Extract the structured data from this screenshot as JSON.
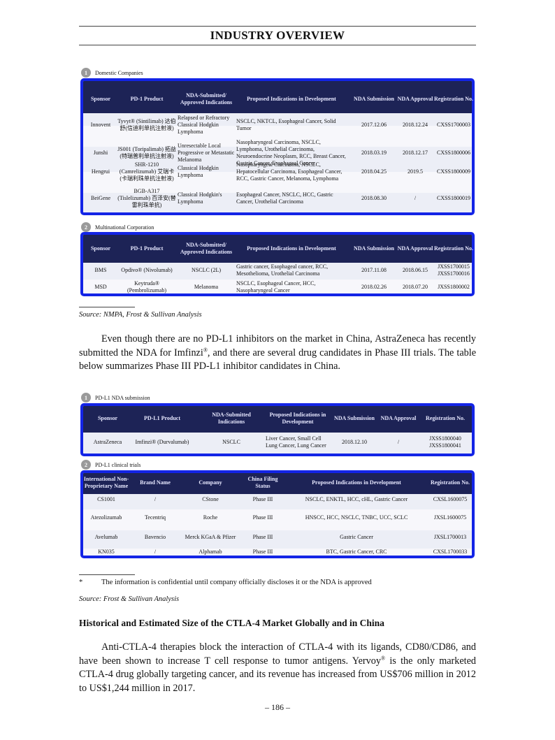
{
  "header": {
    "title": "INDUSTRY OVERVIEW"
  },
  "pd1": {
    "sections": [
      {
        "num": "1",
        "label": "Domestic Companies",
        "columns": [
          "Sponsor",
          "PD-1 Product",
          "NDA-Submitted/ Approved Indications",
          "Proposed Indications in Development",
          "NDA Submission",
          "NDA Approval",
          "Registration No."
        ],
        "rows": [
          [
            "Innovent",
            "Tyvyt® (Sintilimab) 达伯舒(信迪利单抗注射液)",
            "Relapsed or Refractory Classical Hodgkin Lymphoma",
            "NSCLC, NKTCL, Esophageal Cancer, Solid Tumor",
            "2017.12.06",
            "2018.12.24",
            "CXSS1700003"
          ],
          [
            "Junshi",
            "JS001 (Toripalimab) 拓益(特瑞普利单抗注射液)",
            "Unresectable Local Progressive or Metastatic Melanoma",
            "Nasopharyngeal Carcinoma, NSCLC, Lymphoma, Urothelial Carcinoma, Neuroendocrine Neoplasm, RCC, Breast Cancer, Gastric Cancer, Esophageal Cancer",
            "2018.03.19",
            "2018.12.17",
            "CXSS1800006"
          ],
          [
            "Hengrui",
            "SHR-1210 (Camrelizumab) 艾瑞卡(卡瑞利珠单抗注射液)",
            "Classical Hodgkin Lymphoma",
            "Nasopharyngeal Carcinoma, NSCLC, Hepatocellular Carcinoma, Esophageal Cancer, RCC, Gastric Cancer, Melanoma, Lymphoma",
            "2018.04.25",
            "2019.5",
            "CXSS1800009"
          ],
          [
            "BeiGene",
            "BGB-A317 (Tislelizumab) 百泽安(替雷利珠单抗)",
            "Classical Hodgkin's Lymphoma",
            "Esophageal Cancer, NSCLC, HCC, Gastric Cancer, Urothelial Carcinoma",
            "2018.08.30",
            "/",
            "CXSS1800019"
          ]
        ]
      },
      {
        "num": "2",
        "label": "Multinational Corporation",
        "columns": [
          "Sponsor",
          "PD-1 Product",
          "NDA-Submitted/ Approved Indications",
          "Proposed Indications in Development",
          "NDA Submission",
          "NDA Approval",
          "Registration No."
        ],
        "rows": [
          [
            "BMS",
            "Opdivo® (Nivolumab)",
            "NSCLC (2L)",
            "Gastric cancer, Esophageal cancer, RCC, Mesothelioma, Urothelial Carcinoma",
            "2017.11.08",
            "2018.06.15",
            "JXSS1700015 JXSS1700016"
          ],
          [
            "MSD",
            "Keytruda® (Pembrolizumab)",
            "Melanoma",
            "NSCLC, Esophageal Cancer, HCC, Nasopharyngeal Cancer",
            "2018.02.26",
            "2018.07.20",
            "JXSS1800002"
          ]
        ]
      }
    ],
    "source": "Source: NMPA, Frost & Sullivan Analysis"
  },
  "para1": {
    "pre": "Even though there are no PD-L1 inhibitors on the market in China, AstraZeneca has recently submitted the NDA for Imfinzi",
    "sup": "®",
    "post": ", and there are several drug candidates in Phase III trials. The table below summarizes Phase III PD-L1 inhibitor candidates in China."
  },
  "pdl1": {
    "sec1": {
      "num": "1",
      "label": "PD-L1 NDA submission",
      "columns": [
        "Sponsor",
        "PD-L1 Product",
        "NDA-Submitted Indications",
        "Proposed Indications in Development",
        "NDA Submission",
        "NDA Approval",
        "Registration No."
      ],
      "rows": [
        [
          "AstraZeneca",
          "Imfinzi® (Durvalumab)",
          "NSCLC",
          "Liver Cancer, Small Cell Lung Cancer, Lung Cancer",
          "2018.12.10",
          "/",
          "JXSS1800040 JXSS1800041"
        ]
      ]
    },
    "sec2": {
      "num": "2",
      "label": "PD-L1 clinical trials",
      "columns": [
        "International Non-Proprietary Name",
        "Brand Name",
        "Company",
        "China Filing Status",
        "Proposed Indications in Development",
        "Registration No."
      ],
      "rows": [
        [
          "CS1001",
          "/",
          "CStone",
          "Phase III",
          "NSCLC, ENKTL, HCC, cHL, Gastric Cancer",
          "CXSL1600075"
        ],
        [
          "Atezolizumab",
          "Tecentriq",
          "Roche",
          "Phase III",
          "HNSCC, HCC, NSCLC, TNBC, UCC, SCLC",
          "JXSL1600075"
        ],
        [
          "Avelumab",
          "Bavencio",
          "Merck KGaA & Pfizer",
          "Phase III",
          "Gastric Cancer",
          "JXSL1700013"
        ],
        [
          "KN035",
          "/",
          "Alphamab",
          "Phase III",
          "BTC, Gastric Cancer, CRC",
          "CXSL1700033"
        ]
      ]
    },
    "footnote_mark": "*",
    "footnote": "The information is confidential until company officially discloses it or the NDA is approved",
    "source": "Source: Frost & Sullivan Analysis"
  },
  "section2": {
    "heading": "Historical and Estimated Size of the CTLA-4 Market Globally and in China"
  },
  "para2": {
    "pre": "Anti-CTLA-4 therapies block the interaction of CTLA-4 with its ligands, CD80/CD86, and have been shown to increase T cell response to tumor antigens. Yervoy",
    "sup": "®",
    "post": " is the only marketed CTLA-4 drug globally targeting cancer, and its revenue has increased from US$706 million in 2012 to US$1,244 million in 2017."
  },
  "footer": {
    "page": "– 186 –"
  }
}
